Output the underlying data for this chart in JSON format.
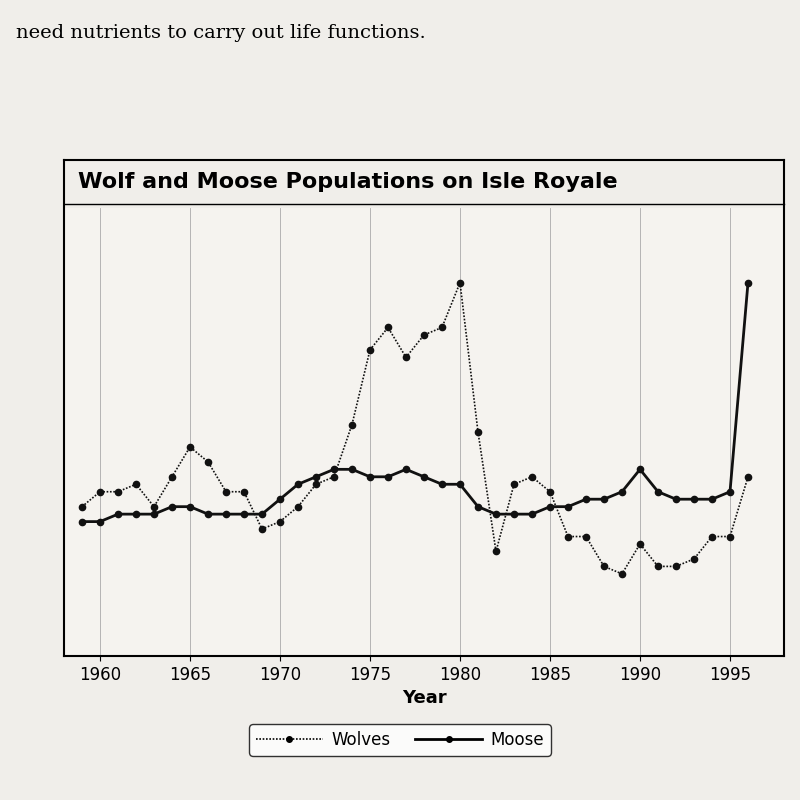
{
  "title": "Wolf and Moose Populations on Isle Royale",
  "xlabel": "Year",
  "top_text": "need nutrients to carry out life functions.",
  "background_color": "#f0eeea",
  "plot_background": "#f5f3ef",
  "wolves": {
    "years": [
      1959,
      1960,
      1961,
      1962,
      1963,
      1964,
      1965,
      1966,
      1967,
      1968,
      1969,
      1970,
      1971,
      1972,
      1973,
      1974,
      1975,
      1976,
      1977,
      1978,
      1979,
      1980,
      1981,
      1982,
      1983,
      1984,
      1985,
      1986,
      1987,
      1988,
      1989,
      1990,
      1991,
      1992,
      1993,
      1994,
      1995,
      1996
    ],
    "values": [
      20,
      22,
      22,
      23,
      20,
      24,
      28,
      26,
      22,
      22,
      17,
      18,
      20,
      23,
      24,
      31,
      41,
      44,
      40,
      43,
      44,
      50,
      30,
      14,
      23,
      24,
      22,
      16,
      16,
      12,
      11,
      15,
      12,
      12,
      13,
      16,
      16,
      24
    ]
  },
  "moose": {
    "years": [
      1959,
      1960,
      1961,
      1962,
      1963,
      1964,
      1965,
      1966,
      1967,
      1968,
      1969,
      1970,
      1971,
      1972,
      1973,
      1974,
      1975,
      1976,
      1977,
      1978,
      1979,
      1980,
      1981,
      1982,
      1983,
      1984,
      1985,
      1986,
      1987,
      1988,
      1989,
      1990,
      1991,
      1992,
      1993,
      1994,
      1995,
      1996
    ],
    "values": [
      18,
      18,
      19,
      19,
      19,
      20,
      20,
      19,
      19,
      19,
      19,
      21,
      23,
      24,
      25,
      25,
      24,
      24,
      25,
      24,
      23,
      23,
      20,
      19,
      19,
      19,
      20,
      20,
      21,
      21,
      22,
      25,
      22,
      21,
      21,
      21,
      22,
      50
    ]
  },
  "ylim": [
    0,
    60
  ],
  "xlim": [
    1958,
    1998
  ],
  "xticks": [
    1960,
    1965,
    1970,
    1975,
    1980,
    1985,
    1990,
    1995
  ],
  "grid_color": "#aaaaaa",
  "line_color": "#111111",
  "title_fontsize": 16,
  "xlabel_fontsize": 13,
  "tick_fontsize": 12
}
